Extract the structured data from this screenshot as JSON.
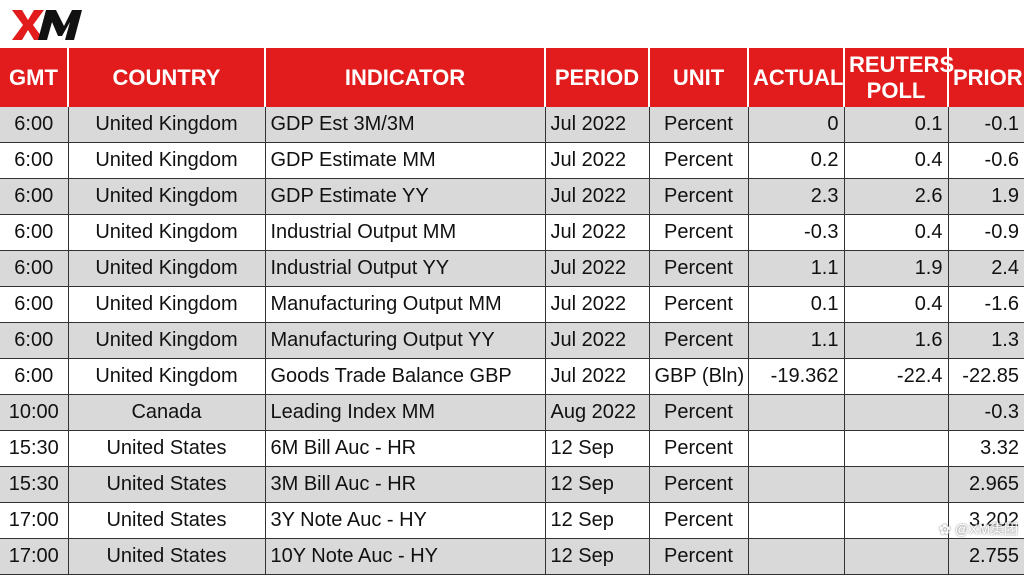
{
  "brand": {
    "logo_text": "XM",
    "accent": "#e21c1c",
    "icon": "xm-logo"
  },
  "table": {
    "headers": {
      "gmt": "GMT",
      "country": "COUNTRY",
      "indicator": "INDICATOR",
      "period": "PERIOD",
      "unit": "UNIT",
      "actual": "ACTUAL",
      "reuters_line1": "REUTERS",
      "reuters_line2": "POLL",
      "prior": "PRIOR"
    },
    "rows": [
      {
        "gmt": "6:00",
        "country": "United Kingdom",
        "indicator": "GDP Est 3M/3M",
        "period": "Jul 2022",
        "unit": "Percent",
        "actual": "0",
        "poll": "0.1",
        "prior": "-0.1"
      },
      {
        "gmt": "6:00",
        "country": "United Kingdom",
        "indicator": "GDP Estimate MM",
        "period": "Jul 2022",
        "unit": "Percent",
        "actual": "0.2",
        "poll": "0.4",
        "prior": "-0.6"
      },
      {
        "gmt": "6:00",
        "country": "United Kingdom",
        "indicator": "GDP Estimate YY",
        "period": "Jul 2022",
        "unit": "Percent",
        "actual": "2.3",
        "poll": "2.6",
        "prior": "1.9"
      },
      {
        "gmt": "6:00",
        "country": "United Kingdom",
        "indicator": "Industrial Output MM",
        "period": "Jul 2022",
        "unit": "Percent",
        "actual": "-0.3",
        "poll": "0.4",
        "prior": "-0.9"
      },
      {
        "gmt": "6:00",
        "country": "United Kingdom",
        "indicator": "Industrial Output YY",
        "period": "Jul 2022",
        "unit": "Percent",
        "actual": "1.1",
        "poll": "1.9",
        "prior": "2.4"
      },
      {
        "gmt": "6:00",
        "country": "United Kingdom",
        "indicator": "Manufacturing Output MM",
        "period": "Jul 2022",
        "unit": "Percent",
        "actual": "0.1",
        "poll": "0.4",
        "prior": "-1.6"
      },
      {
        "gmt": "6:00",
        "country": "United Kingdom",
        "indicator": "Manufacturing Output YY",
        "period": "Jul 2022",
        "unit": "Percent",
        "actual": "1.1",
        "poll": "1.6",
        "prior": "1.3"
      },
      {
        "gmt": "6:00",
        "country": "United Kingdom",
        "indicator": "Goods Trade Balance GBP",
        "period": "Jul 2022",
        "unit": "GBP (Bln)",
        "actual": "-19.362",
        "poll": "-22.4",
        "prior": "-22.85"
      },
      {
        "gmt": "10:00",
        "country": "Canada",
        "indicator": "Leading Index MM",
        "period": "Aug 2022",
        "unit": "Percent",
        "actual": "",
        "poll": "",
        "prior": "-0.3"
      },
      {
        "gmt": "15:30",
        "country": "United States",
        "indicator": "6M Bill Auc - HR",
        "period": "12 Sep",
        "unit": "Percent",
        "actual": "",
        "poll": "",
        "prior": "3.32"
      },
      {
        "gmt": "15:30",
        "country": "United States",
        "indicator": "3M Bill Auc - HR",
        "period": "12 Sep",
        "unit": "Percent",
        "actual": "",
        "poll": "",
        "prior": "2.965"
      },
      {
        "gmt": "17:00",
        "country": "United States",
        "indicator": "3Y Note Auc - HY",
        "period": "12 Sep",
        "unit": "Percent",
        "actual": "",
        "poll": "",
        "prior": "3.202"
      },
      {
        "gmt": "17:00",
        "country": "United States",
        "indicator": "10Y Note Auc - HY",
        "period": "12 Sep",
        "unit": "Percent",
        "actual": "",
        "poll": "",
        "prior": "2.755"
      }
    ]
  },
  "watermark": {
    "text": "@XM集团"
  }
}
